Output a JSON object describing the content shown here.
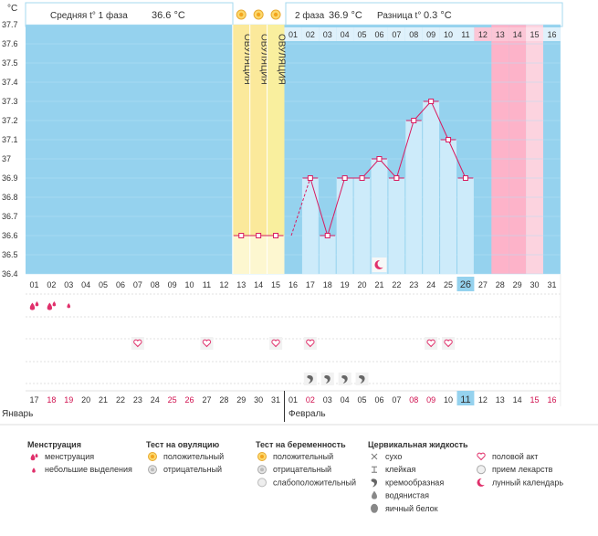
{
  "chart_data": {
    "type": "line",
    "y_unit": "°C",
    "ylim": [
      36.4,
      37.7
    ],
    "y_ticks": [
      "36.4",
      "36.5",
      "36.6",
      "36.7",
      "36.8",
      "36.9",
      "37",
      "37.1",
      "37.2",
      "37.3",
      "37.4",
      "37.5",
      "37.6",
      "37.7"
    ],
    "cycle_days": [
      "01",
      "02",
      "03",
      "04",
      "05",
      "06",
      "07",
      "08",
      "09",
      "10",
      "11",
      "12",
      "13",
      "14",
      "15",
      "16",
      "17",
      "18",
      "19",
      "20",
      "21",
      "22",
      "23",
      "24",
      "25",
      "26",
      "27",
      "28",
      "29",
      "30",
      "31"
    ],
    "phase2_days": [
      "01",
      "02",
      "03",
      "04",
      "05",
      "06",
      "07",
      "08",
      "09",
      "10",
      "11",
      "12",
      "13",
      "14",
      "15",
      "16"
    ],
    "calendar_days": [
      "17",
      "18",
      "19",
      "20",
      "21",
      "22",
      "23",
      "24",
      "25",
      "26",
      "27",
      "28",
      "29",
      "30",
      "31",
      "01",
      "02",
      "03",
      "04",
      "05",
      "06",
      "07",
      "08",
      "09",
      "10",
      "11",
      "12",
      "13",
      "14",
      "15",
      "16"
    ],
    "calendar_red_days": [
      "18",
      "19",
      "25",
      "26",
      "02",
      "08",
      "09",
      "15",
      "16"
    ],
    "today_cycle_day": "26",
    "today_calendar_day": "11",
    "month_left": "Январь",
    "month_right": "Февраль",
    "phase1_label": "Средняя t° 1 фаза",
    "phase1_value": "36.6 °C",
    "phase2_label": "2 фаза",
    "phase2_value": "36.9 °C",
    "diff_label": "Разница t°",
    "diff_value": "0.3 °C",
    "ovulation_days": [
      "13",
      "14",
      "15"
    ],
    "ovulation_label": "ОВУЛЯЦИЯ",
    "menstruation_days": [
      "28",
      "29",
      "30"
    ],
    "series": [
      {
        "x": [
          "13",
          "14",
          "15",
          "17",
          "18",
          "19",
          "20",
          "21",
          "22",
          "23",
          "24",
          "25",
          "26"
        ],
        "y": [
          36.6,
          36.6,
          36.6,
          36.9,
          36.6,
          36.9,
          36.9,
          37.0,
          36.9,
          37.2,
          37.3,
          37.1,
          36.9
        ]
      }
    ],
    "markers": {
      "menstruation_heavy": [
        "01",
        "02"
      ],
      "menstruation_light": [
        "03"
      ],
      "intercourse": [
        "07",
        "11",
        "15",
        "17",
        "24",
        "25"
      ],
      "cervical_creamy": [
        "17",
        "18",
        "19",
        "20"
      ],
      "lunar": [
        "21"
      ]
    }
  },
  "legend": {
    "groups": [
      {
        "title": "Менструация",
        "items": [
          {
            "icon": "menstruation-drop-icon",
            "label": "менструация"
          },
          {
            "icon": "small-drop-icon",
            "label": "небольшие выделения"
          }
        ]
      },
      {
        "title": "Тест на овуляцию",
        "items": [
          {
            "icon": "positive-test-icon",
            "label": "положительный"
          },
          {
            "icon": "negative-test-icon",
            "label": "отрицательный"
          }
        ]
      },
      {
        "title": "Тест на беременность",
        "items": [
          {
            "icon": "positive-test-icon",
            "label": "положительный"
          },
          {
            "icon": "negative-test-icon",
            "label": "отрицательный"
          },
          {
            "icon": "weak-positive-test-icon",
            "label": "слабоположительный"
          }
        ]
      },
      {
        "title": "Цервикальная жидкость",
        "items": [
          {
            "icon": "dry-icon",
            "label": "сухо"
          },
          {
            "icon": "sticky-icon",
            "label": "клейкая"
          },
          {
            "icon": "creamy-icon",
            "label": "кремообразная"
          },
          {
            "icon": "watery-icon",
            "label": "водянистая"
          },
          {
            "icon": "egg-white-icon",
            "label": "яичный белок"
          }
        ]
      },
      {
        "title": "",
        "items": [
          {
            "icon": "heart-icon",
            "label": "половой акт"
          },
          {
            "icon": "pill-icon",
            "label": "прием лекарств"
          },
          {
            "icon": "moon-icon",
            "label": "лунный календарь"
          }
        ]
      }
    ]
  },
  "colors": {
    "blue": "#95d2ee",
    "light_blue": "#cdebfa",
    "ovulation": "#fbe99b",
    "ovulation_light": "#fdf7d0",
    "pink": "#fdb3c9",
    "pink_light": "#fcd3df",
    "line": "#d81b60",
    "red_text": "#d0104f",
    "text": "#333333"
  }
}
